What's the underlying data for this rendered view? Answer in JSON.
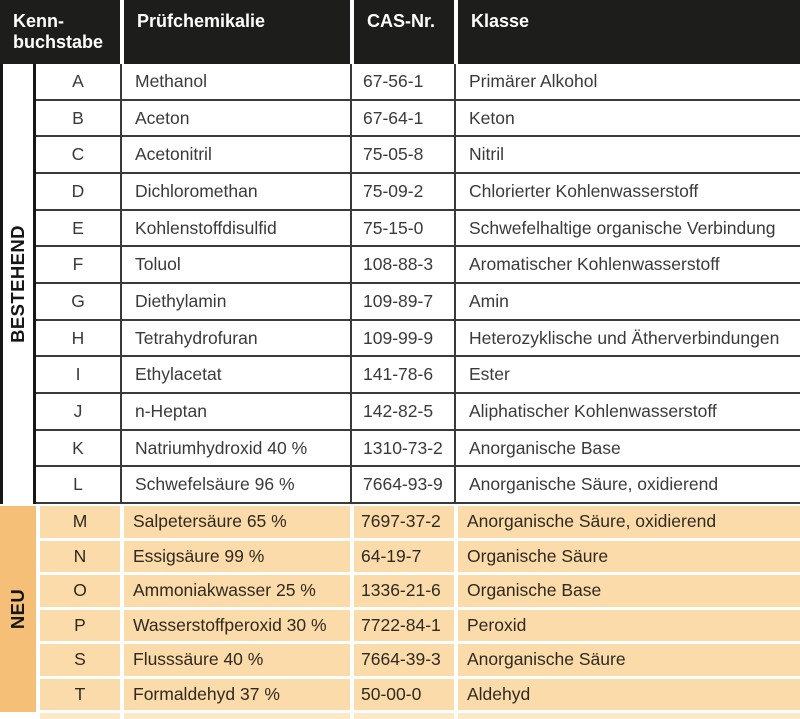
{
  "table": {
    "columns": [
      "Kenn-buchstabe",
      "Prüfchemikalie",
      "CAS-Nr.",
      "Klasse"
    ],
    "sections": [
      {
        "label": "BESTEHEND",
        "rows": [
          {
            "letter": "A",
            "chemical": "Methanol",
            "cas": "67-56-1",
            "klasse": "Primärer Alkohol"
          },
          {
            "letter": "B",
            "chemical": "Aceton",
            "cas": "67-64-1",
            "klasse": "Keton"
          },
          {
            "letter": "C",
            "chemical": "Acetonitril",
            "cas": "75-05-8",
            "klasse": "Nitril"
          },
          {
            "letter": "D",
            "chemical": "Dichloromethan",
            "cas": "75-09-2",
            "klasse": "Chlorierter Kohlenwasserstoff"
          },
          {
            "letter": "E",
            "chemical": "Kohlenstoffdisulfid",
            "cas": "75-15-0",
            "klasse": "Schwefelhaltige organische Verbindung"
          },
          {
            "letter": "F",
            "chemical": "Toluol",
            "cas": "108-88-3",
            "klasse": "Aromatischer Kohlenwasserstoff"
          },
          {
            "letter": "G",
            "chemical": "Diethylamin",
            "cas": "109-89-7",
            "klasse": "Amin"
          },
          {
            "letter": "H",
            "chemical": "Tetrahydrofuran",
            "cas": "109-99-9",
            "klasse": "Heterozyklische und Ätherverbindungen"
          },
          {
            "letter": "I",
            "chemical": "Ethylacetat",
            "cas": "141-78-6",
            "klasse": "Ester"
          },
          {
            "letter": "J",
            "chemical": "n-Heptan",
            "cas": "142-82-5",
            "klasse": "Aliphatischer Kohlenwasserstoff"
          },
          {
            "letter": "K",
            "chemical": "Natriumhydroxid 40 %",
            "cas": "1310-73-2",
            "klasse": "Anorganische Base"
          },
          {
            "letter": "L",
            "chemical": "Schwefelsäure 96 %",
            "cas": "7664-93-9",
            "klasse": "Anorganische Säure, oxidierend"
          }
        ]
      },
      {
        "label": "NEU",
        "rows": [
          {
            "letter": "M",
            "chemical": "Salpetersäure 65 %",
            "cas": "7697-37-2",
            "klasse": "Anorganische Säure, oxidierend"
          },
          {
            "letter": "N",
            "chemical": "Essigsäure 99 %",
            "cas": "64-19-7",
            "klasse": "Organische Säure"
          },
          {
            "letter": "O",
            "chemical": "Ammoniakwasser 25 %",
            "cas": "1336-21-6",
            "klasse": "Organische Base"
          },
          {
            "letter": "P",
            "chemical": "Wasserstoffperoxid 30 %",
            "cas": "7722-84-1",
            "klasse": "Peroxid"
          },
          {
            "letter": "S",
            "chemical": "Flusssäure 40 %",
            "cas": "7664-39-3",
            "klasse": "Anorganische Säure"
          },
          {
            "letter": "T",
            "chemical": "Formaldehyd 37 %",
            "cas": "50-00-0",
            "klasse": "Aldehyd"
          }
        ]
      }
    ]
  },
  "colors": {
    "header_bg": "#1d1d1b",
    "header_text": "#ffffff",
    "grid": "#3a3a39",
    "body_text": "#3a3a39",
    "neu_band": "#f6bf77",
    "neu_row": "#fcdbaa",
    "neu_strip": "#fde9c8",
    "neu_text": "#2f2a1f"
  }
}
